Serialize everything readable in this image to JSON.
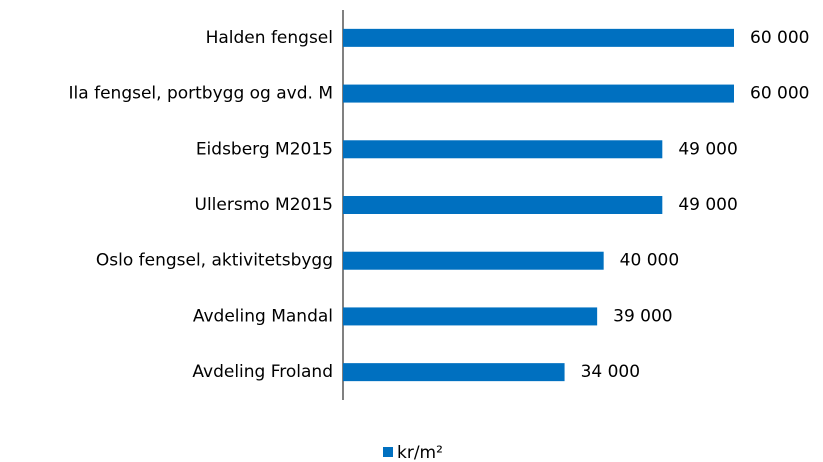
{
  "chart_data": {
    "type": "hbar",
    "categories": [
      "Halden fengsel",
      "Ila fengsel, portbygg og avd. M",
      "Eidsberg M2015",
      "Ullersmo M2015",
      "Oslo fengsel, aktivitetsbygg",
      "Avdeling Mandal",
      "Avdeling Froland"
    ],
    "series": [
      {
        "name": "kr/m²",
        "color": "#0070c0",
        "values": [
          60000,
          60000,
          49000,
          49000,
          40000,
          39000,
          34000
        ],
        "value_labels": [
          "60 000",
          "60 000",
          "49 000",
          "49 000",
          "40 000",
          "39 000",
          "34 000"
        ]
      }
    ],
    "xlim": [
      0,
      60000
    ],
    "legend": "bottom"
  }
}
